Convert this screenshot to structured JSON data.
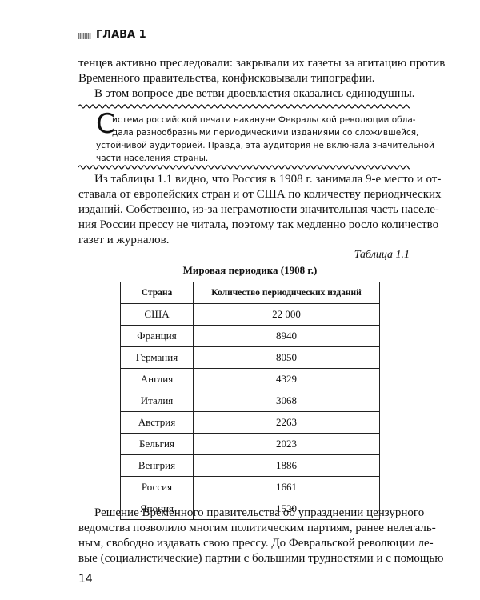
{
  "header": {
    "chapter": "ГЛАВА 1"
  },
  "text_top": {
    "paragraphs": [
      [
        "тенцев активно преследовали: закрывали их газеты за агитацию против",
        "Временного правительства, конфисковывали типографии."
      ],
      [
        "В этом вопросе две ветви двоевластия оказались единодушны."
      ]
    ]
  },
  "highlight": {
    "initial": "С",
    "lines": [
      "истема российской печати накануне Февральской революции обла-",
      "дала разнообразными периодическими изданиями со сложившейся,",
      "устойчивой аудиторией. Правда, эта аудитория не включала значительной",
      "части населения страны."
    ]
  },
  "text_middle": {
    "lines": [
      "Из таблицы 1.1 видно, что Россия в 1908 г. занимала 9-е место и от-",
      "ставала от европейских стран и от США по количеству периодических",
      "изданий. Собственно, из-за неграмотности значительная часть населе-",
      "ния России прессу не читала, поэтому так медленно росло количество",
      "газет и журналов."
    ]
  },
  "table": {
    "label": "Таблица 1.1",
    "title": "Мировая периодика (1908 г.)",
    "columns": [
      "Страна",
      "Количество периодических изданий"
    ],
    "rows": [
      [
        "США",
        "22 000"
      ],
      [
        "Франция",
        "8940"
      ],
      [
        "Германия",
        "8050"
      ],
      [
        "Англия",
        "4329"
      ],
      [
        "Италия",
        "3068"
      ],
      [
        "Австрия",
        "2263"
      ],
      [
        "Бельгия",
        "2023"
      ],
      [
        "Венгрия",
        "1886"
      ],
      [
        "Россия",
        "1661"
      ],
      [
        "Япония",
        "1520"
      ]
    ]
  },
  "text_bottom": {
    "lines": [
      "Решение Временного правительства об упразднении цензурного",
      "ведомства позволило многим политическим партиям, ранее нелегаль-",
      "ным, свободно издавать свою прессу. До Февральской революции ле-",
      "вые (социалистические) партии с большими трудностями и с помощью"
    ]
  },
  "page_number": "14"
}
